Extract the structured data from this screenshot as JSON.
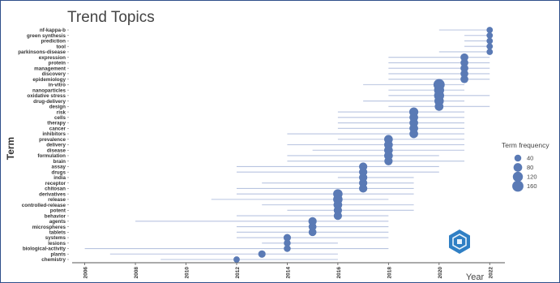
{
  "chart_data": {
    "type": "scatter",
    "title": "Trend Topics",
    "xlabel": "Year",
    "ylabel": "Term",
    "xlim": [
      2005.5,
      2022.6
    ],
    "x_ticks": [
      2006,
      2008,
      2010,
      2012,
      2014,
      2016,
      2018,
      2020,
      2022
    ],
    "legend": {
      "title": "Term frequency",
      "entries": [
        40,
        80,
        120,
        160
      ],
      "placement": "right"
    },
    "colors": {
      "point": "#5a7ab5",
      "range": "#b8c4e0",
      "axis": "#555555"
    },
    "terms": [
      {
        "term": "nf-kappa-b",
        "year": 2022,
        "start": 2020,
        "end": 2022,
        "freq": 30
      },
      {
        "term": "green synthesis",
        "year": 2022,
        "start": 2021,
        "end": 2022,
        "freq": 30
      },
      {
        "term": "prediction",
        "year": 2022,
        "start": 2021,
        "end": 2022,
        "freq": 30
      },
      {
        "term": "tool",
        "year": 2022,
        "start": 2021,
        "end": 2022,
        "freq": 30
      },
      {
        "term": "parkinsons-disease",
        "year": 2022,
        "start": 2020,
        "end": 2022,
        "freq": 30
      },
      {
        "term": "expression",
        "year": 2021,
        "start": 2018,
        "end": 2022,
        "freq": 60
      },
      {
        "term": "protein",
        "year": 2021,
        "start": 2018,
        "end": 2022,
        "freq": 60
      },
      {
        "term": "management",
        "year": 2021,
        "start": 2018,
        "end": 2022,
        "freq": 60
      },
      {
        "term": "discovery",
        "year": 2021,
        "start": 2018,
        "end": 2022,
        "freq": 60
      },
      {
        "term": "epidemiology",
        "year": 2021,
        "start": 2018,
        "end": 2022,
        "freq": 60
      },
      {
        "term": "in-vitro",
        "year": 2020,
        "start": 2017,
        "end": 2021,
        "freq": 160
      },
      {
        "term": "nanoparticles",
        "year": 2020,
        "start": 2018,
        "end": 2021,
        "freq": 120
      },
      {
        "term": "oxidative stress",
        "year": 2020,
        "start": 2018,
        "end": 2022,
        "freq": 120
      },
      {
        "term": "drug-delivery",
        "year": 2020,
        "start": 2017,
        "end": 2021,
        "freq": 100
      },
      {
        "term": "design",
        "year": 2020,
        "start": 2018,
        "end": 2022,
        "freq": 80
      },
      {
        "term": "risk",
        "year": 2019,
        "start": 2016,
        "end": 2021,
        "freq": 90
      },
      {
        "term": "cells",
        "year": 2019,
        "start": 2016,
        "end": 2021,
        "freq": 80
      },
      {
        "term": "therapy",
        "year": 2019,
        "start": 2016,
        "end": 2021,
        "freq": 80
      },
      {
        "term": "cancer",
        "year": 2019,
        "start": 2016,
        "end": 2021,
        "freq": 80
      },
      {
        "term": "inhibitors",
        "year": 2019,
        "start": 2014,
        "end": 2021,
        "freq": 80
      },
      {
        "term": "prevalence",
        "year": 2018,
        "start": 2016,
        "end": 2021,
        "freq": 80
      },
      {
        "term": "delivery",
        "year": 2018,
        "start": 2014,
        "end": 2021,
        "freq": 80
      },
      {
        "term": "disease",
        "year": 2018,
        "start": 2015,
        "end": 2021,
        "freq": 80
      },
      {
        "term": "formulation",
        "year": 2018,
        "start": 2014,
        "end": 2020,
        "freq": 80
      },
      {
        "term": "brain",
        "year": 2018,
        "start": 2014,
        "end": 2021,
        "freq": 70
      },
      {
        "term": "assay",
        "year": 2017,
        "start": 2012,
        "end": 2020,
        "freq": 70
      },
      {
        "term": "drugs",
        "year": 2017,
        "start": 2012,
        "end": 2020,
        "freq": 70
      },
      {
        "term": "india",
        "year": 2017,
        "start": 2016,
        "end": 2019,
        "freq": 70
      },
      {
        "term": "receptor",
        "year": 2017,
        "start": 2013,
        "end": 2019,
        "freq": 70
      },
      {
        "term": "chitosan",
        "year": 2017,
        "start": 2012,
        "end": 2019,
        "freq": 70
      },
      {
        "term": "derivatives",
        "year": 2016,
        "start": 2012,
        "end": 2019,
        "freq": 100
      },
      {
        "term": "release",
        "year": 2016,
        "start": 2011,
        "end": 2018,
        "freq": 100
      },
      {
        "term": "controlled-release",
        "year": 2016,
        "start": 2013,
        "end": 2019,
        "freq": 80
      },
      {
        "term": "potent",
        "year": 2016,
        "start": 2014,
        "end": 2019,
        "freq": 70
      },
      {
        "term": "behavior",
        "year": 2016,
        "start": 2012,
        "end": 2018,
        "freq": 70
      },
      {
        "term": "agents",
        "year": 2015,
        "start": 2008,
        "end": 2018,
        "freq": 70
      },
      {
        "term": "microspheres",
        "year": 2015,
        "start": 2012,
        "end": 2018,
        "freq": 60
      },
      {
        "term": "tablets",
        "year": 2015,
        "start": 2012,
        "end": 2018,
        "freq": 60
      },
      {
        "term": "systems",
        "year": 2014,
        "start": 2012,
        "end": 2018,
        "freq": 50
      },
      {
        "term": "lesions",
        "year": 2014,
        "start": 2013,
        "end": 2016,
        "freq": 40
      },
      {
        "term": "biological-activity",
        "year": 2014,
        "start": 2006,
        "end": 2018,
        "freq": 40
      },
      {
        "term": "plants",
        "year": 2013,
        "start": 2007,
        "end": 2016,
        "freq": 50
      },
      {
        "term": "chemistry",
        "year": 2012,
        "start": 2009,
        "end": 2016,
        "freq": 30
      }
    ]
  }
}
